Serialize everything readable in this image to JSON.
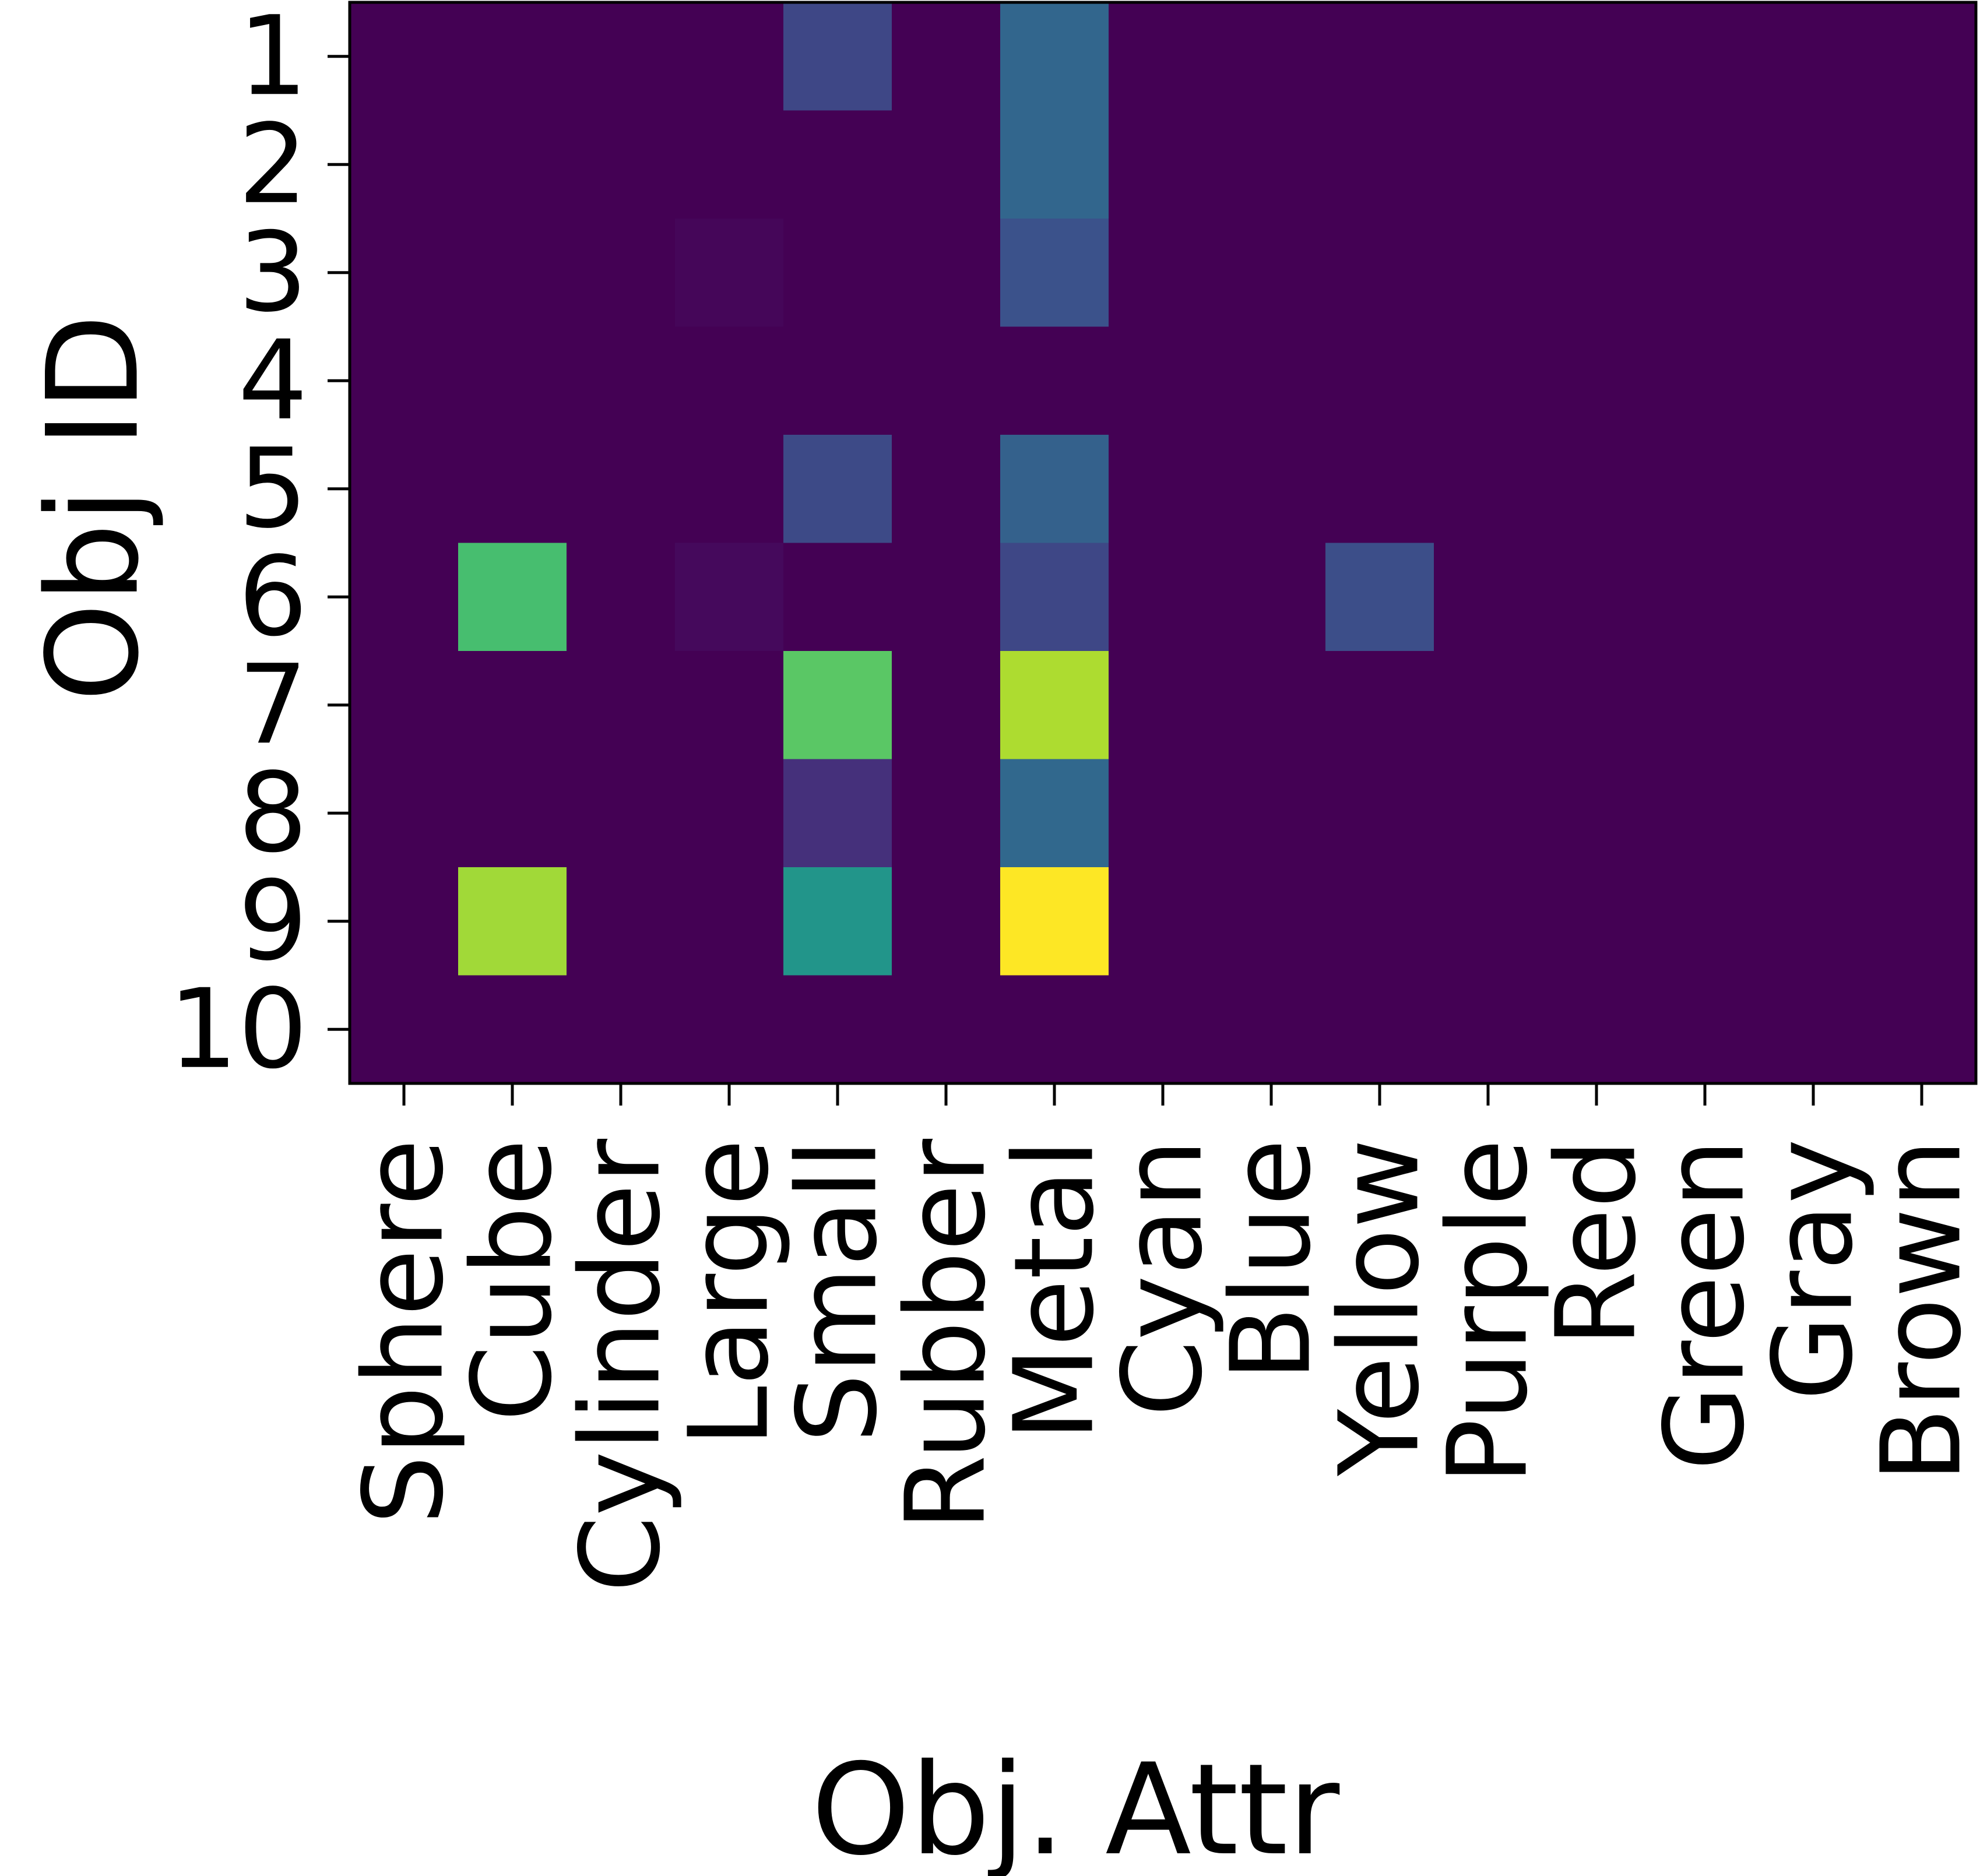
{
  "chart_data": {
    "type": "heatmap",
    "title": "",
    "xlabel": "Obj. Attr",
    "ylabel": "Obj ID",
    "x_categories": [
      "Sphere",
      "Cube",
      "Cylinder",
      "Large",
      "Small",
      "Rubber",
      "Metal",
      "Cyan",
      "Blue",
      "Yellow",
      "Purple",
      "Red",
      "Green",
      "Gray",
      "Brown"
    ],
    "y_categories": [
      "1",
      "2",
      "3",
      "4",
      "5",
      "6",
      "7",
      "8",
      "9",
      "10"
    ],
    "colormap": "viridis",
    "value_range": [
      0,
      1
    ],
    "values": [
      [
        0,
        0,
        0,
        0,
        0.22,
        0,
        0.33,
        0,
        0,
        0,
        0,
        0,
        0,
        0,
        0
      ],
      [
        0,
        0,
        0,
        0,
        0,
        0,
        0.33,
        0,
        0,
        0,
        0,
        0,
        0,
        0,
        0
      ],
      [
        0,
        0,
        0,
        0.02,
        0,
        0,
        0.25,
        0,
        0,
        0,
        0,
        0,
        0,
        0,
        0
      ],
      [
        0,
        0,
        0,
        0,
        0,
        0,
        0,
        0,
        0,
        0,
        0,
        0,
        0,
        0,
        0
      ],
      [
        0,
        0,
        0,
        0,
        0.23,
        0,
        0.31,
        0,
        0,
        0,
        0,
        0,
        0,
        0,
        0
      ],
      [
        0,
        0.7,
        0,
        0.03,
        0,
        0,
        0.22,
        0,
        0,
        0.24,
        0,
        0,
        0,
        0,
        0
      ],
      [
        0,
        0,
        0,
        0,
        0.74,
        0,
        0.88,
        0,
        0,
        0,
        0,
        0,
        0,
        0,
        0
      ],
      [
        0,
        0,
        0,
        0,
        0.16,
        0,
        0.34,
        0,
        0,
        0,
        0,
        0,
        0,
        0,
        0
      ],
      [
        0,
        0.86,
        0,
        0,
        0.52,
        0,
        1.0,
        0,
        0,
        0,
        0,
        0,
        0,
        0,
        0
      ],
      [
        0,
        0,
        0,
        0,
        0,
        0,
        0,
        0,
        0,
        0,
        0,
        0,
        0,
        0,
        0
      ]
    ],
    "grid": false,
    "colorbar": false
  }
}
